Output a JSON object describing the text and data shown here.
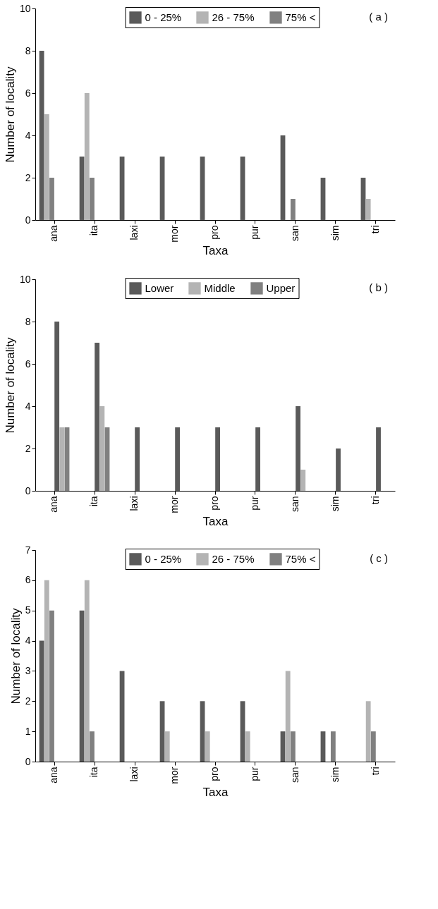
{
  "chart_data": [
    {
      "type": "bar",
      "xlabel": "Taxa",
      "ylabel": "Number of locality",
      "annotations": [
        "( a )"
      ],
      "categories": [
        "ana",
        "ita",
        "laxi",
        "mor",
        "pro",
        "pur",
        "san",
        "sim",
        "tri"
      ],
      "ylim": [
        0,
        10
      ],
      "yticks": [
        0,
        2,
        4,
        6,
        8,
        10
      ],
      "grid": false,
      "legend": "top",
      "series": [
        {
          "name": "0 - 25%",
          "color": "#5a5a5a",
          "values": [
            8,
            3,
            3,
            3,
            3,
            3,
            4,
            2,
            2
          ]
        },
        {
          "name": "26 - 75%",
          "color": "#b4b4b4",
          "values": [
            5,
            6,
            null,
            null,
            null,
            null,
            null,
            null,
            1
          ]
        },
        {
          "name": "75% <",
          "color": "#808080",
          "values": [
            2,
            2,
            null,
            null,
            null,
            null,
            1,
            null,
            null
          ]
        }
      ]
    },
    {
      "type": "bar",
      "xlabel": "Taxa",
      "ylabel": "Number of locality",
      "annotations": [
        "( b )"
      ],
      "categories": [
        "ana",
        "ita",
        "laxi",
        "mor",
        "pro",
        "pur",
        "san",
        "sim",
        "tri"
      ],
      "ylim": [
        0,
        10
      ],
      "yticks": [
        0,
        2,
        4,
        6,
        8,
        10
      ],
      "grid": false,
      "legend": "top",
      "series": [
        {
          "name": "Lower",
          "color": "#5a5a5a",
          "values": [
            8,
            7,
            3,
            3,
            3,
            3,
            4,
            2,
            3
          ]
        },
        {
          "name": "Middle",
          "color": "#b4b4b4",
          "values": [
            3,
            4,
            null,
            null,
            null,
            null,
            1,
            null,
            null
          ]
        },
        {
          "name": "Upper",
          "color": "#808080",
          "values": [
            3,
            3,
            null,
            null,
            null,
            null,
            null,
            null,
            null
          ]
        }
      ]
    },
    {
      "type": "bar",
      "xlabel": "Taxa",
      "ylabel": "Number of locality",
      "annotations": [
        "( c )"
      ],
      "categories": [
        "ana",
        "ita",
        "laxi",
        "mor",
        "pro",
        "pur",
        "san",
        "sim",
        "tri"
      ],
      "ylim": [
        0,
        7
      ],
      "yticks": [
        0,
        1,
        2,
        3,
        4,
        5,
        6,
        7
      ],
      "grid": false,
      "legend": "top",
      "series": [
        {
          "name": "0 - 25%",
          "color": "#5a5a5a",
          "values": [
            4,
            5,
            3,
            2,
            2,
            2,
            1,
            1,
            null
          ]
        },
        {
          "name": "26 - 75%",
          "color": "#b4b4b4",
          "values": [
            6,
            6,
            null,
            1,
            1,
            1,
            3,
            null,
            2
          ]
        },
        {
          "name": "75% <",
          "color": "#808080",
          "values": [
            5,
            1,
            null,
            null,
            null,
            null,
            1,
            1,
            1
          ]
        }
      ]
    }
  ]
}
